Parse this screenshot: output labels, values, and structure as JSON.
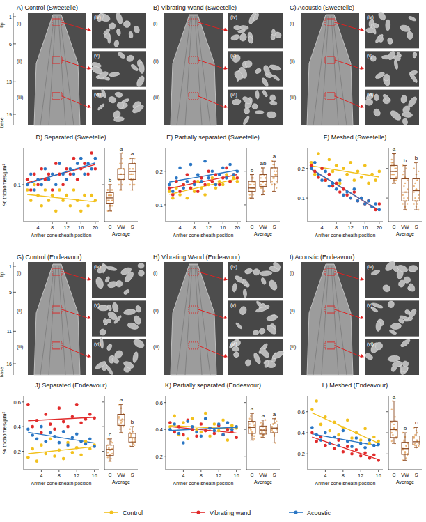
{
  "figure": {
    "image_panels": [
      {
        "title": "A) Control (Sweetelle)",
        "labels": [
          "(i)",
          "(ii)",
          "(iii)",
          "(iv)",
          "(v)",
          "(vi)"
        ]
      },
      {
        "title": "B) Vibrating Wand (Sweetelle)",
        "labels": [
          "(i)",
          "(ii)",
          "(iii)",
          "(iv)",
          "(v)",
          "(vi)"
        ]
      },
      {
        "title": "C) Acoustic (Sweetelle)",
        "labels": [
          "(i)",
          "(ii)",
          "(iii)",
          "(iv)",
          "(v)",
          "(vi)"
        ]
      },
      {
        "title": "G) Control (Endeavour)",
        "labels": [
          "(i)",
          "(ii)",
          "(iii)",
          "(iv)",
          "(v)",
          "(vi)"
        ]
      },
      {
        "title": "H) Vibrating Wand  (Endeavour)",
        "labels": [
          "(i)",
          "(ii)",
          "(iii)",
          "(iv)",
          "(v)",
          "(vi)"
        ]
      },
      {
        "title": "I) Acoustic (Endeavour)",
        "labels": [
          "(i)",
          "(ii)",
          "(iii)",
          "(iv)",
          "(v)",
          "(vi)"
        ]
      }
    ],
    "rulers": [
      {
        "ticks": [
          1,
          6,
          13,
          19
        ],
        "tip": "tip",
        "base": "base"
      },
      {
        "ticks": [
          1,
          5,
          11,
          16
        ],
        "tip": "tip",
        "base": "base"
      }
    ]
  },
  "chart_data": [
    {
      "type": "scatter",
      "title": "D) Separated (Sweetelle)",
      "x_label": "Anther cone sheath position",
      "y_label": "% trichomes/µm²",
      "x": [
        1,
        2,
        3,
        4,
        5,
        6,
        7,
        8,
        9,
        10,
        11,
        12,
        13,
        14,
        15,
        16,
        17,
        18,
        19,
        20
      ],
      "xlim": [
        0,
        21
      ],
      "xticks": [
        4,
        8,
        12,
        16,
        20
      ],
      "ylim": [
        0.03,
        0.17
      ],
      "yticks": [
        0.1
      ],
      "grid": false,
      "legend": "bottom",
      "series": [
        {
          "name": "Control",
          "color": "#f2c11d",
          "marker": "circle",
          "values": [
            0.09,
            0.07,
            0.1,
            0.08,
            0.06,
            0.09,
            0.07,
            0.08,
            0.05,
            0.09,
            0.07,
            0.08,
            0.06,
            0.09,
            0.07,
            0.05,
            0.08,
            0.06,
            0.08,
            0.07
          ]
        },
        {
          "name": "Vibrating wand",
          "color": "#e12b2b",
          "marker": "circle",
          "values": [
            0.11,
            0.09,
            0.12,
            0.1,
            0.13,
            0.11,
            0.12,
            0.09,
            0.14,
            0.12,
            0.1,
            0.13,
            0.12,
            0.15,
            0.11,
            0.13,
            0.14,
            0.12,
            0.16,
            0.13
          ]
        },
        {
          "name": "Acoustic",
          "color": "#2a76c4",
          "marker": "circle",
          "values": [
            0.1,
            0.12,
            0.09,
            0.11,
            0.1,
            0.13,
            0.11,
            0.12,
            0.1,
            0.14,
            0.12,
            0.11,
            0.13,
            0.12,
            0.14,
            0.15,
            0.12,
            0.14,
            0.13,
            0.15
          ]
        }
      ],
      "average": {
        "label": "Average",
        "categories": [
          "C",
          "VW",
          "S"
        ],
        "boxes": [
          {
            "min": 0.05,
            "q1": 0.065,
            "median": 0.075,
            "q3": 0.085,
            "max": 0.1
          },
          {
            "min": 0.09,
            "q1": 0.11,
            "median": 0.12,
            "q3": 0.13,
            "max": 0.16
          },
          {
            "min": 0.09,
            "q1": 0.11,
            "median": 0.125,
            "q3": 0.14,
            "max": 0.15
          }
        ],
        "letters": [
          "b",
          "a",
          "a"
        ]
      }
    },
    {
      "type": "scatter",
      "title": "E) Partially separated (Sweetelle)",
      "x_label": "Anther cone sheath position",
      "x": [
        1,
        2,
        3,
        4,
        5,
        6,
        7,
        8,
        9,
        10,
        11,
        12,
        13,
        14,
        15,
        16,
        17,
        18,
        19,
        20
      ],
      "xlim": [
        0,
        21
      ],
      "xticks": [
        4,
        8,
        12,
        16,
        20
      ],
      "ylim": [
        0.05,
        0.27
      ],
      "yticks": [
        0.1,
        0.2
      ],
      "grid": false,
      "legend": "bottom",
      "series": [
        {
          "name": "Control",
          "color": "#f2c11d",
          "marker": "circle",
          "values": [
            0.14,
            0.12,
            0.15,
            0.13,
            0.16,
            0.12,
            0.15,
            0.14,
            0.17,
            0.15,
            0.13,
            0.16,
            0.18,
            0.15,
            0.17,
            0.16,
            0.19,
            0.17,
            0.18,
            0.17
          ]
        },
        {
          "name": "Vibrating wand",
          "color": "#e12b2b",
          "marker": "circle",
          "values": [
            0.15,
            0.13,
            0.17,
            0.14,
            0.16,
            0.19,
            0.15,
            0.17,
            0.14,
            0.18,
            0.16,
            0.2,
            0.17,
            0.19,
            0.16,
            0.18,
            0.21,
            0.17,
            0.19,
            0.18
          ]
        },
        {
          "name": "Acoustic",
          "color": "#2a76c4",
          "marker": "circle",
          "values": [
            0.16,
            0.14,
            0.18,
            0.21,
            0.15,
            0.17,
            0.22,
            0.16,
            0.19,
            0.17,
            0.23,
            0.18,
            0.2,
            0.16,
            0.19,
            0.21,
            0.18,
            0.22,
            0.19,
            0.2
          ]
        }
      ],
      "average": {
        "label": "Average",
        "categories": [
          "C",
          "VW",
          "S"
        ],
        "boxes": [
          {
            "min": 0.12,
            "q1": 0.14,
            "median": 0.15,
            "q3": 0.17,
            "max": 0.19
          },
          {
            "min": 0.13,
            "q1": 0.155,
            "median": 0.17,
            "q3": 0.19,
            "max": 0.21
          },
          {
            "min": 0.14,
            "q1": 0.165,
            "median": 0.185,
            "q3": 0.21,
            "max": 0.23
          }
        ],
        "letters": [
          "b",
          "ab",
          "a"
        ]
      }
    },
    {
      "type": "scatter",
      "title": "F) Meshed (Sweetelle)",
      "x_label": "Anther cone sheath position",
      "x": [
        1,
        2,
        3,
        4,
        5,
        6,
        7,
        8,
        9,
        10,
        11,
        12,
        13,
        14,
        15,
        16,
        17,
        18,
        19,
        20
      ],
      "xlim": [
        0,
        21
      ],
      "xticks": [
        4,
        8,
        12,
        16,
        20
      ],
      "ylim": [
        0.02,
        0.27
      ],
      "yticks": [
        0.1,
        0.2
      ],
      "grid": false,
      "legend": "bottom",
      "series": [
        {
          "name": "Control",
          "color": "#f2c11d",
          "marker": "circle",
          "values": [
            0.22,
            0.18,
            0.25,
            0.2,
            0.16,
            0.23,
            0.19,
            0.21,
            0.15,
            0.2,
            0.18,
            0.22,
            0.16,
            0.19,
            0.17,
            0.21,
            0.15,
            0.18,
            0.16,
            0.19
          ]
        },
        {
          "name": "Vibrating wand",
          "color": "#e12b2b",
          "marker": "circle",
          "values": [
            0.21,
            0.19,
            0.17,
            0.2,
            0.16,
            0.18,
            0.14,
            0.15,
            0.12,
            0.13,
            0.11,
            0.1,
            0.12,
            0.09,
            0.1,
            0.08,
            0.09,
            0.07,
            0.06,
            0.08
          ]
        },
        {
          "name": "Acoustic",
          "color": "#2a76c4",
          "marker": "circle",
          "values": [
            0.2,
            0.22,
            0.18,
            0.16,
            0.19,
            0.14,
            0.15,
            0.13,
            0.16,
            0.11,
            0.12,
            0.1,
            0.13,
            0.09,
            0.1,
            0.08,
            0.09,
            0.07,
            0.08,
            0.06
          ]
        }
      ],
      "average": {
        "label": "Average",
        "categories": [
          "C",
          "VW",
          "S"
        ],
        "boxes": [
          {
            "min": 0.15,
            "q1": 0.165,
            "median": 0.19,
            "q3": 0.21,
            "max": 0.25
          },
          {
            "min": 0.06,
            "q1": 0.09,
            "median": 0.12,
            "q3": 0.165,
            "max": 0.21
          },
          {
            "min": 0.06,
            "q1": 0.09,
            "median": 0.125,
            "q3": 0.165,
            "max": 0.22
          }
        ],
        "letters": [
          "a",
          "b",
          "b"
        ]
      }
    },
    {
      "type": "scatter",
      "title": "J) Separated (Endeavour)",
      "x_label": "Anther cone sheath position",
      "y_label": "% trichomes/µm²",
      "x": [
        1,
        2,
        3,
        4,
        5,
        6,
        7,
        8,
        9,
        10,
        11,
        12,
        13,
        14,
        15,
        16
      ],
      "xlim": [
        0,
        17
      ],
      "xticks": [
        4,
        8,
        12,
        16
      ],
      "ylim": [
        0.05,
        0.65
      ],
      "yticks": [
        0.2,
        0.4,
        0.6
      ],
      "grid": false,
      "legend": "bottom",
      "series": [
        {
          "name": "Control",
          "color": "#f2c11d",
          "marker": "circle",
          "values": [
            0.15,
            0.22,
            0.12,
            0.25,
            0.18,
            0.3,
            0.16,
            0.21,
            0.14,
            0.27,
            0.19,
            0.23,
            0.17,
            0.28,
            0.22,
            0.25
          ]
        },
        {
          "name": "Vibrating wand",
          "color": "#e12b2b",
          "marker": "circle",
          "values": [
            0.58,
            0.4,
            0.45,
            0.35,
            0.5,
            0.42,
            0.38,
            0.55,
            0.44,
            0.4,
            0.48,
            0.58,
            0.43,
            0.46,
            0.5,
            0.47
          ]
        },
        {
          "name": "Acoustic",
          "color": "#2a76c4",
          "marker": "circle",
          "values": [
            0.38,
            0.33,
            0.3,
            0.4,
            0.28,
            0.35,
            0.32,
            0.27,
            0.36,
            0.25,
            0.31,
            0.34,
            0.28,
            0.26,
            0.3,
            0.24
          ]
        }
      ],
      "average": {
        "label": "Average",
        "categories": [
          "C",
          "VW",
          "S"
        ],
        "boxes": [
          {
            "min": 0.12,
            "q1": 0.165,
            "median": 0.215,
            "q3": 0.25,
            "max": 0.3
          },
          {
            "min": 0.35,
            "q1": 0.41,
            "median": 0.455,
            "q3": 0.5,
            "max": 0.58
          },
          {
            "min": 0.24,
            "q1": 0.275,
            "median": 0.31,
            "q3": 0.345,
            "max": 0.4
          }
        ],
        "letters": [
          "c",
          "a",
          "b"
        ]
      }
    },
    {
      "type": "scatter",
      "title": "K) Partially separated (Endeavour)",
      "x_label": "Anther cone sheath position",
      "x": [
        1,
        2,
        3,
        4,
        5,
        6,
        7,
        8,
        9,
        10,
        11,
        12,
        13,
        14,
        15,
        16
      ],
      "xlim": [
        0,
        17
      ],
      "xticks": [
        4,
        8,
        12,
        16
      ],
      "ylim": [
        0.1,
        0.65
      ],
      "yticks": [
        0.2,
        0.4,
        0.6
      ],
      "grid": false,
      "legend": "bottom",
      "series": [
        {
          "name": "Control",
          "color": "#f2c11d",
          "marker": "circle",
          "values": [
            0.42,
            0.5,
            0.36,
            0.45,
            0.33,
            0.48,
            0.4,
            0.38,
            0.52,
            0.35,
            0.44,
            0.39,
            0.47,
            0.32,
            0.43,
            0.41
          ]
        },
        {
          "name": "Vibrating wand",
          "color": "#e12b2b",
          "marker": "circle",
          "values": [
            0.45,
            0.38,
            0.42,
            0.36,
            0.47,
            0.4,
            0.35,
            0.44,
            0.39,
            0.41,
            0.37,
            0.43,
            0.36,
            0.4,
            0.38,
            0.34
          ]
        },
        {
          "name": "Acoustic",
          "color": "#2a76c4",
          "marker": "circle",
          "values": [
            0.4,
            0.44,
            0.37,
            0.3,
            0.46,
            0.42,
            0.38,
            0.35,
            0.48,
            0.41,
            0.39,
            0.44,
            0.36,
            0.45,
            0.4,
            0.42
          ]
        }
      ],
      "average": {
        "label": "Average",
        "categories": [
          "C",
          "VW",
          "S"
        ],
        "boxes": [
          {
            "min": 0.32,
            "q1": 0.37,
            "median": 0.415,
            "q3": 0.46,
            "max": 0.52
          },
          {
            "min": 0.34,
            "q1": 0.365,
            "median": 0.395,
            "q3": 0.425,
            "max": 0.47
          },
          {
            "min": 0.3,
            "q1": 0.375,
            "median": 0.41,
            "q3": 0.44,
            "max": 0.48
          }
        ],
        "letters": [
          "a",
          "a",
          "a"
        ]
      }
    },
    {
      "type": "scatter",
      "title": "L) Meshed (Endeavour)",
      "x_label": "Anther cone sheath position",
      "x": [
        1,
        2,
        3,
        4,
        5,
        6,
        7,
        8,
        9,
        10,
        11,
        12,
        13,
        14,
        15,
        16
      ],
      "xlim": [
        0,
        17
      ],
      "xticks": [
        4,
        8,
        12,
        16
      ],
      "ylim": [
        0.05,
        0.75
      ],
      "yticks": [
        0.2,
        0.4,
        0.6
      ],
      "grid": false,
      "legend": "bottom",
      "series": [
        {
          "name": "Control",
          "color": "#f2c11d",
          "marker": "circle",
          "values": [
            0.62,
            0.7,
            0.48,
            0.55,
            0.42,
            0.5,
            0.38,
            0.45,
            0.52,
            0.35,
            0.4,
            0.33,
            0.44,
            0.3,
            0.36,
            0.32
          ]
        },
        {
          "name": "Vibrating wand",
          "color": "#e12b2b",
          "marker": "circle",
          "values": [
            0.4,
            0.32,
            0.36,
            0.28,
            0.3,
            0.25,
            0.33,
            0.22,
            0.27,
            0.2,
            0.24,
            0.18,
            0.21,
            0.16,
            0.19,
            0.14
          ]
        },
        {
          "name": "Acoustic",
          "color": "#2a76c4",
          "marker": "circle",
          "values": [
            0.45,
            0.38,
            0.33,
            0.4,
            0.3,
            0.36,
            0.28,
            0.42,
            0.32,
            0.27,
            0.35,
            0.3,
            0.26,
            0.33,
            0.28,
            0.29
          ]
        }
      ],
      "average": {
        "label": "Average",
        "categories": [
          "C",
          "VW",
          "S"
        ],
        "boxes": [
          {
            "min": 0.3,
            "q1": 0.355,
            "median": 0.43,
            "q3": 0.51,
            "max": 0.7
          },
          {
            "min": 0.14,
            "q1": 0.195,
            "median": 0.25,
            "q3": 0.31,
            "max": 0.4
          },
          {
            "min": 0.26,
            "q1": 0.285,
            "median": 0.315,
            "q3": 0.37,
            "max": 0.45
          }
        ],
        "letters": [
          "a",
          "b",
          "c"
        ]
      }
    }
  ]
}
